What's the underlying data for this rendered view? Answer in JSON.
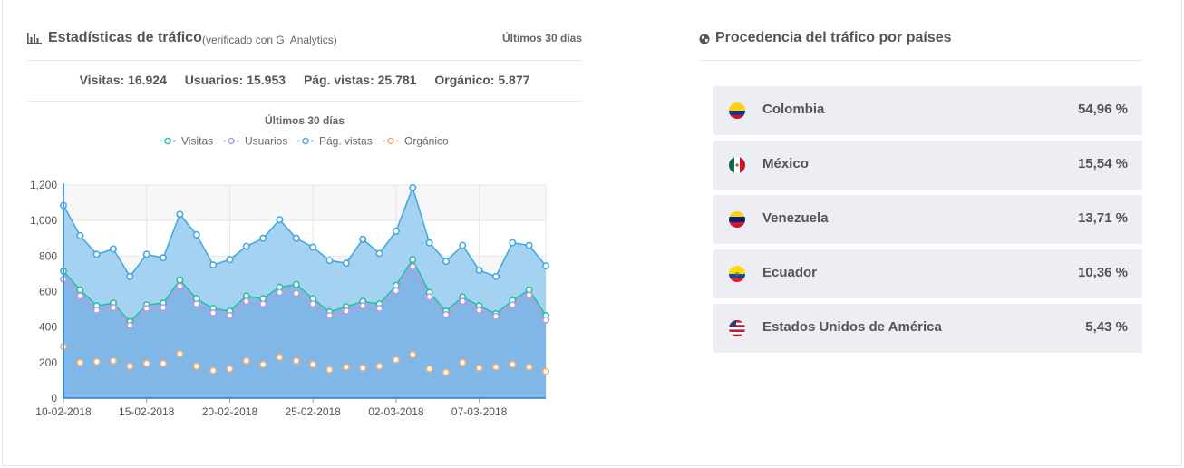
{
  "traffic": {
    "title": "Estadísticas de tráfico",
    "subtitle": "(verificado con G. Analytics)",
    "range_label": "Últimos 30 días",
    "stats": {
      "visitas": "Visitas: 16.924",
      "usuarios": "Usuarios: 15.953",
      "pag_vistas": "Pág. vistas: 25.781",
      "organico": "Orgánico: 5.877"
    }
  },
  "chart_data": {
    "type": "area",
    "title": "Últimos 30 días",
    "ylim": [
      0,
      1200
    ],
    "yticks": [
      "0",
      "200",
      "400",
      "600",
      "800",
      "1,000",
      "1,200"
    ],
    "xtick_labels": [
      "10-02-2018",
      "15-02-2018",
      "20-02-2018",
      "25-02-2018",
      "02-03-2018",
      "07-03-2018"
    ],
    "grid": true,
    "legend": "top-center",
    "x": [
      "10-02-2018",
      "11-02-2018",
      "12-02-2018",
      "13-02-2018",
      "14-02-2018",
      "15-02-2018",
      "16-02-2018",
      "17-02-2018",
      "18-02-2018",
      "19-02-2018",
      "20-02-2018",
      "21-02-2018",
      "22-02-2018",
      "23-02-2018",
      "24-02-2018",
      "25-02-2018",
      "26-02-2018",
      "27-02-2018",
      "28-02-2018",
      "01-03-2018",
      "02-03-2018",
      "03-03-2018",
      "04-03-2018",
      "05-03-2018",
      "06-03-2018",
      "07-03-2018",
      "08-03-2018",
      "09-03-2018",
      "10-03-2018",
      "11-03-2018"
    ],
    "series": [
      {
        "name": "Visitas",
        "color": "#26c0a8",
        "values": [
          715,
          610,
          520,
          535,
          430,
          525,
          535,
          665,
          560,
          505,
          490,
          575,
          560,
          625,
          640,
          560,
          485,
          515,
          545,
          530,
          635,
          780,
          595,
          490,
          570,
          520,
          475,
          550,
          610,
          465
        ]
      },
      {
        "name": "Usuarios",
        "color": "#b39ddb",
        "values": [
          670,
          575,
          495,
          510,
          410,
          505,
          510,
          630,
          530,
          480,
          465,
          545,
          530,
          595,
          590,
          530,
          465,
          490,
          520,
          505,
          605,
          740,
          570,
          470,
          545,
          495,
          460,
          525,
          580,
          440
        ]
      },
      {
        "name": "Pág. vistas",
        "color": "#45a9e0",
        "values": [
          1085,
          915,
          810,
          840,
          685,
          810,
          790,
          1035,
          920,
          750,
          780,
          855,
          900,
          1005,
          900,
          850,
          775,
          760,
          895,
          815,
          940,
          1185,
          875,
          770,
          860,
          720,
          685,
          875,
          860,
          745
        ]
      },
      {
        "name": "Orgánico",
        "color": "#f5b07a",
        "values": [
          290,
          200,
          205,
          210,
          180,
          195,
          195,
          250,
          180,
          155,
          165,
          210,
          190,
          230,
          210,
          190,
          160,
          175,
          170,
          180,
          215,
          245,
          165,
          145,
          200,
          170,
          175,
          190,
          175,
          150
        ]
      }
    ]
  },
  "countries": {
    "title": "Procedencia del tráfico por países",
    "items": [
      {
        "name": "Colombia",
        "percent": "54,96 %",
        "flag_colors": [
          "#fcd116",
          "#003893",
          "#ce1126"
        ]
      },
      {
        "name": "México",
        "percent": "15,54 %",
        "flag_colors": [
          "#006847",
          "#ffffff",
          "#ce1126"
        ]
      },
      {
        "name": "Venezuela",
        "percent": "13,71 %",
        "flag_colors": [
          "#fcd116",
          "#00247d",
          "#cf142b"
        ]
      },
      {
        "name": "Ecuador",
        "percent": "10,36 %",
        "flag_colors": [
          "#ffdd00",
          "#034ea2",
          "#ed1c24"
        ]
      },
      {
        "name": "Estados Unidos de América",
        "percent": "5,43 %",
        "flag_colors": [
          "#b22234",
          "#ffffff",
          "#3c3b6e"
        ]
      }
    ]
  }
}
